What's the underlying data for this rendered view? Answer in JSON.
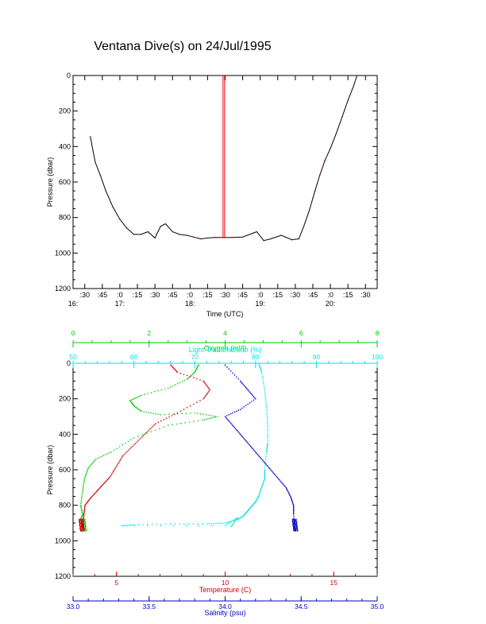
{
  "title": "Ventana Dive(s) on 24/Jul/1995",
  "chart_data": [
    {
      "type": "line",
      "xlabel": "Time (UTC)",
      "ylabel": "Pressure (dbar)",
      "ylim": [
        1200,
        0
      ],
      "yticks": [
        "0",
        "200",
        "400",
        "600",
        "800",
        "1000",
        "1200"
      ],
      "xlim": [
        16.333,
        20.667
      ],
      "xticks": [
        ":30",
        ":45",
        ":0",
        ":15",
        ":30",
        ":45",
        ":0",
        ":15",
        ":30",
        ":45",
        ":0",
        ":15",
        ":30",
        ":45",
        ":0",
        ":15",
        ":30"
      ],
      "hour_labels": [
        "16:",
        "17:",
        "18:",
        "19:",
        "20:"
      ],
      "colors": {
        "series": "#000000",
        "spike": "#ff0000"
      },
      "series": [
        {
          "x": [
            16.58,
            16.62,
            16.65,
            16.72,
            16.8,
            16.9,
            17.0,
            17.1,
            17.2,
            17.3,
            17.4,
            17.5,
            17.58,
            17.65,
            17.75,
            17.85,
            17.95,
            18.05,
            18.15,
            18.25,
            18.35,
            18.47,
            18.6,
            18.75,
            18.95,
            19.05,
            19.15,
            19.3,
            19.45,
            19.55,
            19.62,
            19.7,
            19.78,
            19.85,
            19.92,
            20.0,
            20.08,
            20.17,
            20.25,
            20.33,
            20.38
          ],
          "y": [
            345,
            430,
            490,
            560,
            650,
            740,
            810,
            860,
            895,
            895,
            880,
            915,
            850,
            835,
            880,
            895,
            900,
            910,
            920,
            915,
            912,
            912,
            912,
            910,
            880,
            930,
            920,
            900,
            925,
            920,
            850,
            760,
            650,
            560,
            480,
            410,
            330,
            230,
            140,
            60,
            0
          ]
        }
      ],
      "spike": {
        "x": 18.47,
        "y": [
          0,
          915
        ]
      }
    },
    {
      "type": "scatter",
      "ylabel": "Pressure (dbar)",
      "ylim": [
        1200,
        0
      ],
      "yticks": [
        "0",
        "200",
        "400",
        "600",
        "800",
        "1000",
        "1200"
      ],
      "axes": [
        {
          "name": "Oxygen (ml/l)",
          "color": "#00cc00",
          "range": [
            0,
            8
          ],
          "ticks": [
            "0",
            "2",
            "4",
            "6",
            "8"
          ]
        },
        {
          "name": "Light Transmission (%)",
          "color": "#00e5e5",
          "range": [
            50,
            100
          ],
          "ticks": [
            "50",
            "60",
            "70",
            "80",
            "90",
            "100"
          ]
        },
        {
          "name": "Temperature (C)",
          "color": "#cc0000",
          "range": [
            3,
            17
          ],
          "ticks": [
            "5",
            "10",
            "15"
          ]
        },
        {
          "name": "Salinity (psu)",
          "color": "#0000cc",
          "range": [
            33.0,
            35.0
          ],
          "ticks": [
            "33.0",
            "33.5",
            "34.0",
            "34.5",
            "35.0"
          ]
        }
      ],
      "series": [
        {
          "axis": 0,
          "x": [
            3.3,
            3.2,
            3.0,
            2.5,
            1.8,
            1.5,
            1.6,
            1.8,
            2.3,
            3.2,
            3.8,
            3.4,
            2.5,
            1.6,
            1.0,
            0.6,
            0.4,
            0.3,
            0.25,
            0.2,
            0.25,
            0.2,
            0.25,
            0.28
          ],
          "y": [
            10,
            50,
            90,
            140,
            180,
            210,
            240,
            270,
            290,
            280,
            300,
            320,
            350,
            420,
            500,
            540,
            590,
            650,
            720,
            800,
            850,
            880,
            910,
            930
          ]
        },
        {
          "axis": 1,
          "x": [
            80.5,
            81,
            81.5,
            81.8,
            82,
            82,
            81.8,
            81.5,
            81.5,
            81,
            80.5,
            80,
            79.5,
            79,
            78.5,
            78,
            77,
            75,
            72,
            66,
            60,
            58,
            75,
            77,
            76
          ],
          "y": [
            0,
            50,
            150,
            250,
            350,
            450,
            500,
            600,
            650,
            700,
            750,
            780,
            800,
            820,
            840,
            860,
            880,
            900,
            905,
            905,
            910,
            915,
            915,
            870,
            920
          ]
        },
        {
          "axis": 2,
          "x": [
            7.5,
            7.8,
            9.0,
            9.3,
            9.0,
            7.8,
            6.8,
            6.3,
            5.8,
            5.3,
            5.0,
            4.7,
            4.4,
            4.1,
            3.8,
            3.55,
            3.5,
            3.45,
            3.42,
            3.4
          ],
          "y": [
            10,
            50,
            100,
            150,
            200,
            280,
            340,
            400,
            460,
            520,
            580,
            640,
            680,
            720,
            760,
            800,
            850,
            900,
            930,
            945
          ]
        },
        {
          "axis": 3,
          "x": [
            34.0,
            34.1,
            34.15,
            34.2,
            34.1,
            34.0,
            34.05,
            34.1,
            34.15,
            34.2,
            34.25,
            34.3,
            34.35,
            34.4,
            34.43,
            34.45,
            34.45,
            34.46
          ],
          "y": [
            10,
            100,
            150,
            200,
            260,
            300,
            350,
            400,
            450,
            500,
            550,
            600,
            650,
            700,
            750,
            800,
            850,
            940
          ]
        }
      ]
    }
  ]
}
